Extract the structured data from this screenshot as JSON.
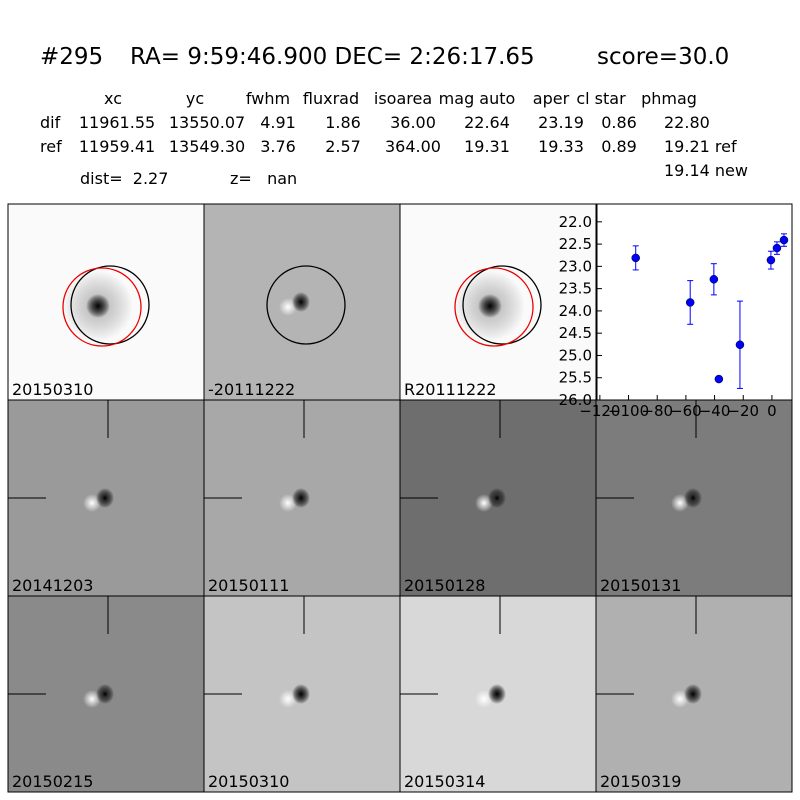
{
  "header": {
    "id": "#295",
    "coords": "RA= 9:59:46.900 DEC= 2:26:17.65",
    "score": "score=30.0"
  },
  "table": {
    "columns": [
      "xc",
      "yc",
      "fwhm",
      "fluxrad",
      "isoarea",
      "mag auto",
      "aper",
      "cl star",
      "phmag"
    ],
    "rows": [
      [
        "dif",
        "11961.55",
        "13550.07",
        "4.91",
        "1.86",
        "36.00",
        "22.64",
        "23.19",
        "0.86",
        "22.80"
      ],
      [
        "ref",
        "11959.41",
        "13549.30",
        "3.76",
        "2.57",
        "364.00",
        "19.31",
        "19.33",
        "0.89",
        "19.21 ref"
      ]
    ],
    "extra": "19.14 new"
  },
  "dist": "dist=  2.27",
  "z": "z=   nan",
  "panels": [
    {
      "label": "20150310",
      "label_color": "#000000"
    },
    {
      "label": "-20111222",
      "label_color": "#000000"
    },
    {
      "label": "R20111222",
      "label_color": "#000000"
    },
    {
      "label": "20141203",
      "label_color": "#000000"
    },
    {
      "label": "20150111",
      "label_color": "#000000"
    },
    {
      "label": "20150128",
      "label_color": "#000000"
    },
    {
      "label": "20150131",
      "label_color": "#000000"
    },
    {
      "label": "20150215",
      "label_color": "#000000"
    },
    {
      "label": "20150310",
      "label_color": "#ff0000"
    },
    {
      "label": "20150314",
      "label_color": "#000000"
    },
    {
      "label": "20150319",
      "label_color": "#000000"
    }
  ],
  "chart_data": {
    "type": "errorbar",
    "color": "#0000ff",
    "x": [
      -95,
      -57,
      -40.5,
      -37,
      -22.3,
      -0.7,
      3.5,
      8.4
    ],
    "values": [
      22.81,
      23.81,
      23.29,
      25.53,
      24.76,
      22.86,
      22.59,
      22.41
    ],
    "errors": [
      0.27,
      0.49,
      0.35,
      0.05,
      0.98,
      0.2,
      0.14,
      0.14
    ],
    "xlim": [
      -122,
      14
    ],
    "xticks": [
      {
        "value": -120,
        "label": "−120"
      },
      {
        "value": -100,
        "label": "−100"
      },
      {
        "value": -80,
        "label": "−80"
      },
      {
        "value": -60,
        "label": "−60"
      },
      {
        "value": -40,
        "label": "−40"
      },
      {
        "value": -20,
        "label": "−20"
      },
      0
    ],
    "ylim": [
      26.0,
      21.6
    ],
    "yticks": [
      {
        "value": 22,
        "label": "22.0"
      },
      22.5,
      {
        "value": 23,
        "label": "23.0"
      },
      23.5,
      {
        "value": 24,
        "label": "24.0"
      },
      24.5,
      {
        "value": 25,
        "label": "25.0"
      },
      25.5,
      {
        "value": 26,
        "label": "26.0"
      }
    ]
  }
}
